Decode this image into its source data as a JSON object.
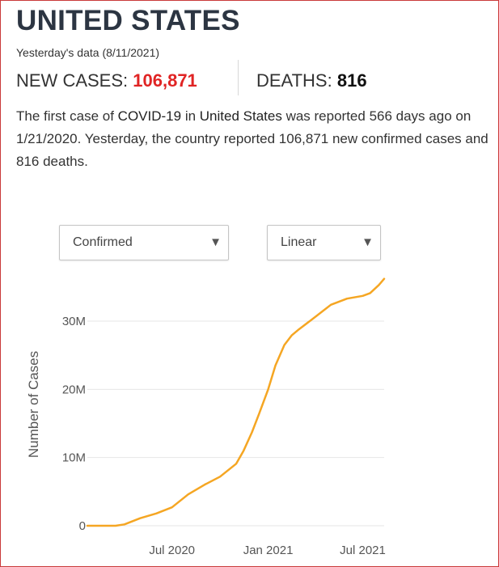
{
  "header": {
    "title": "UNITED STATES",
    "subtitle": "Yesterday's data (8/11/2021)"
  },
  "stats": {
    "cases_label": "NEW CASES:",
    "cases_value": "106,871",
    "deaths_label": "DEATHS:",
    "deaths_value": "816"
  },
  "description": {
    "p1": "The first case of ",
    "b1": "COVID-19",
    "p2": " in ",
    "b2": "United States",
    "p3": " was reported 566 days ago on 1/21/2020. Yesterday, the country reported 106,871 new confirmed cases and 816 deaths."
  },
  "controls": {
    "metric_selected": "Confirmed",
    "scale_selected": "Linear"
  },
  "colors": {
    "accent_red": "#e02424",
    "line": "#f5a623",
    "title": "#2c3542",
    "grid": "#e6e6e6"
  },
  "chart_data": {
    "type": "line",
    "title": "",
    "xlabel": "",
    "ylabel": "Number of Cases",
    "x_tick_labels": [
      "Jul 2020",
      "Jan 2021",
      "Jul 2021"
    ],
    "y_tick_labels": [
      "0",
      "10M",
      "20M",
      "30M"
    ],
    "y_ticks": [
      0,
      10000000,
      20000000,
      30000000
    ],
    "ylim": [
      0,
      36000000
    ],
    "xlim": [
      "2020-01-21",
      "2021-08-11"
    ],
    "grid": true,
    "legend": "none",
    "series": [
      {
        "name": "",
        "x": [
          "2020-01-21",
          "2020-02-15",
          "2020-03-01",
          "2020-03-15",
          "2020-04-01",
          "2020-05-01",
          "2020-06-01",
          "2020-07-01",
          "2020-08-01",
          "2020-09-01",
          "2020-10-01",
          "2020-11-01",
          "2020-11-15",
          "2020-12-01",
          "2020-12-15",
          "2021-01-01",
          "2021-01-15",
          "2021-02-01",
          "2021-02-15",
          "2021-03-01",
          "2021-04-01",
          "2021-05-01",
          "2021-06-01",
          "2021-07-01",
          "2021-07-15",
          "2021-08-01",
          "2021-08-11"
        ],
        "values": [
          0,
          15,
          75,
          3500,
          200000,
          1100000,
          1800000,
          2700000,
          4600000,
          6000000,
          7200000,
          9100000,
          11000000,
          13700000,
          16500000,
          20000000,
          23500000,
          26500000,
          27900000,
          28800000,
          30600000,
          32400000,
          33300000,
          33700000,
          34100000,
          35300000,
          36200000
        ]
      }
    ]
  }
}
